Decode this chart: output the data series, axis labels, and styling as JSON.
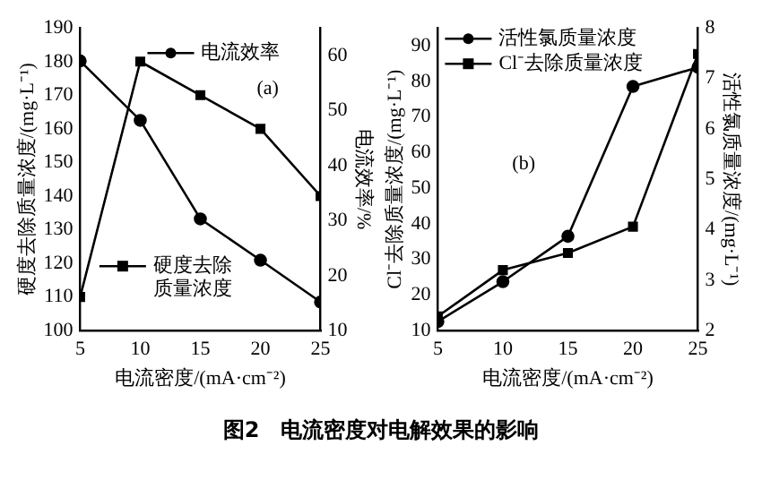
{
  "chart_data": [
    {
      "type": "line",
      "xlabel": "电流密度/(mA·cm⁻²)",
      "ylabel": "硬度去除质量浓度/(mg·L⁻¹)",
      "y2label": "电流效率/%",
      "annotations": [
        "(a)",
        "图2　电流密度对电解效果的影响"
      ],
      "x": [
        5,
        10,
        15,
        20,
        25
      ],
      "xlim": [
        5,
        25
      ],
      "xticks": [
        5,
        10,
        15,
        20,
        25
      ],
      "ylim": [
        100,
        190
      ],
      "yticks": [
        100,
        110,
        120,
        130,
        140,
        150,
        160,
        170,
        180,
        190
      ],
      "y2lim": [
        10,
        65
      ],
      "y2ticks": [
        10,
        20,
        30,
        40,
        50,
        60
      ],
      "legend": "right",
      "grid": false,
      "series": [
        {
          "name": "电流效率",
          "color": "#000000",
          "marker": "circle",
          "axis": "y2",
          "values": [
            59,
            48.2,
            30.3,
            22.8,
            15.2
          ]
        },
        {
          "name": "硬度去除质量浓度",
          "color": "#000000",
          "marker": "square",
          "values": [
            110,
            180,
            170,
            160,
            140
          ]
        }
      ]
    },
    {
      "type": "line",
      "xlabel": "电流密度/(mA·cm⁻²)",
      "ylabel": "Cl⁻去除质量浓度/(mg·L⁻¹)",
      "y2label": "活性氯质量浓度/(mg·L⁻¹)",
      "annotations": [
        "(b)"
      ],
      "x": [
        5,
        10,
        15,
        20,
        25
      ],
      "xlim": [
        5,
        25
      ],
      "xticks": [
        5,
        10,
        15,
        20,
        25
      ],
      "ylim": [
        10,
        95
      ],
      "yticks": [
        10,
        20,
        30,
        40,
        50,
        60,
        70,
        80,
        90
      ],
      "y2lim": [
        2,
        8
      ],
      "y2ticks": [
        2,
        3,
        4,
        5,
        6,
        7,
        8
      ],
      "legend": "top left",
      "grid": false,
      "series": [
        {
          "name": "活性氯质量浓度",
          "color": "#000000",
          "marker": "circle",
          "axis": "y2",
          "values": [
            2.18,
            2.97,
            3.87,
            6.84,
            7.22
          ]
        },
        {
          "name": "Cl⁻去除质量浓度",
          "color": "#000000",
          "marker": "square",
          "values": [
            14,
            27,
            31.8,
            39.2,
            87.7
          ]
        }
      ]
    }
  ]
}
